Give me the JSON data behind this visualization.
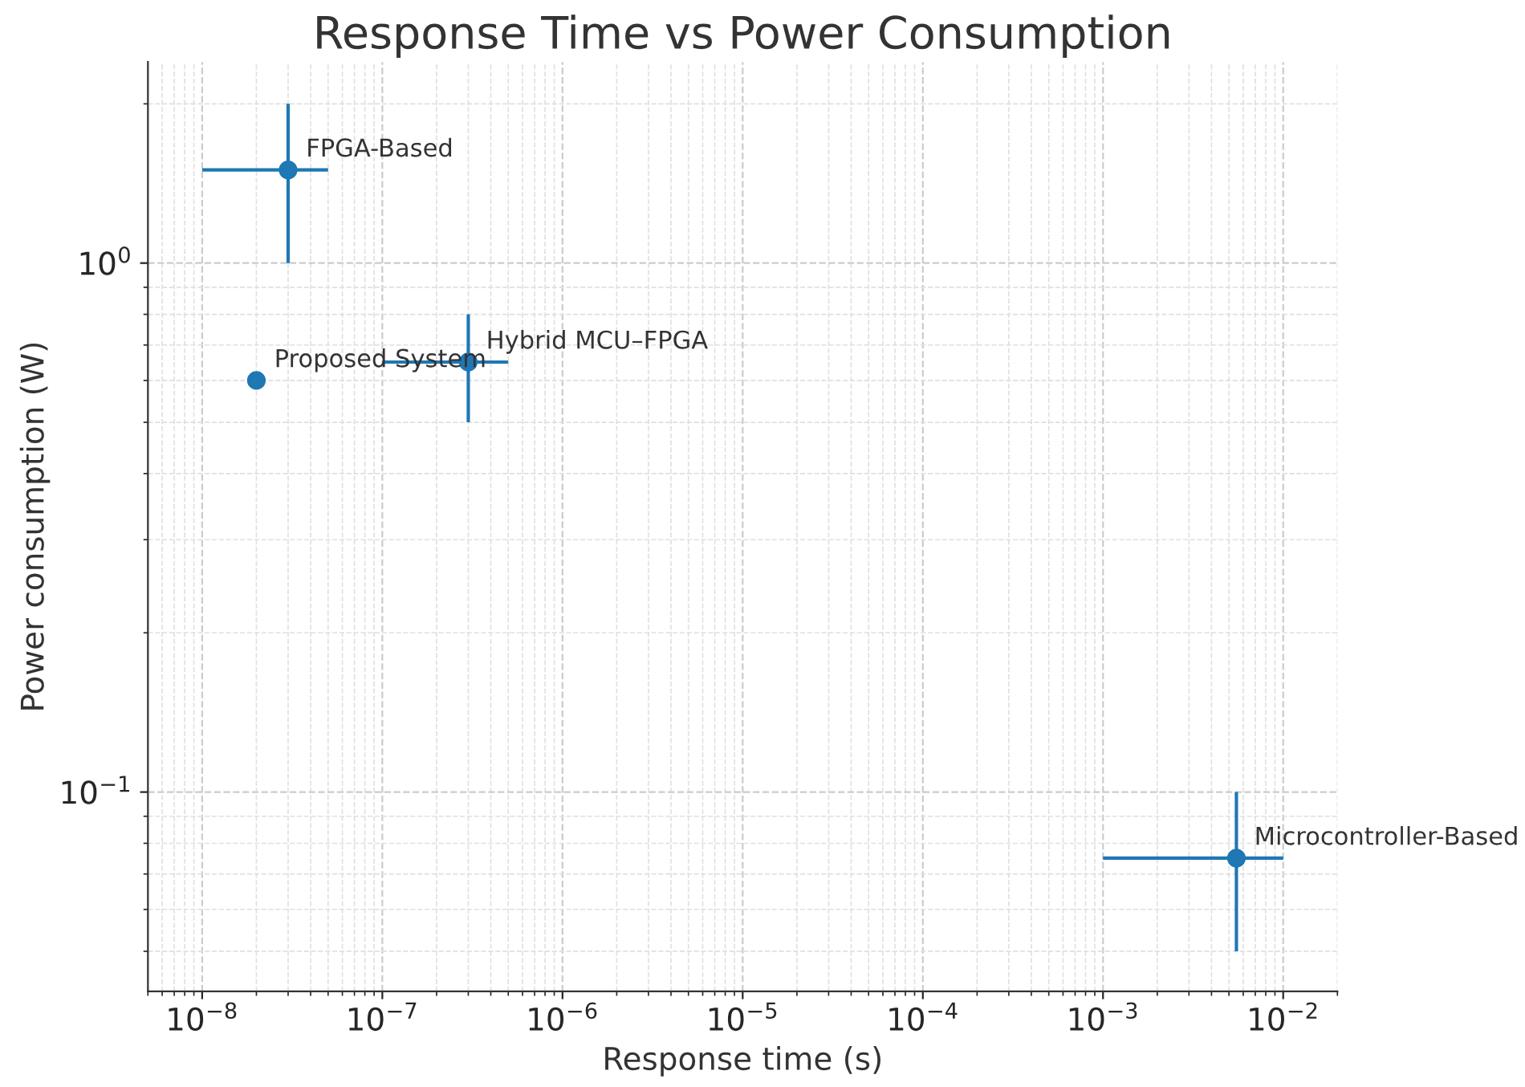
{
  "chart_data": {
    "type": "scatter",
    "title": "Response Time vs Power Consumption",
    "xlabel": "Response time (s)",
    "ylabel": "Power consumption (W)",
    "log": "xy",
    "grid": true,
    "marker": "circle",
    "xlim": [
      5e-09,
      0.02
    ],
    "ylim": [
      0.042,
      2.4
    ],
    "xticks": [
      {
        "value": 1e-08,
        "label": "10$^{−8}$"
      },
      {
        "value": 1e-07,
        "label": "10$^{−7}$"
      },
      {
        "value": 1e-06,
        "label": "10$^{−6}$"
      },
      {
        "value": 1e-05,
        "label": "10$^{−5}$"
      },
      {
        "value": 0.0001,
        "label": "10$^{−4}$"
      },
      {
        "value": 0.001,
        "label": "10$^{−3}$"
      },
      {
        "value": 0.01,
        "label": "10$^{−2}$"
      }
    ],
    "yticks": [
      {
        "value": 0.1,
        "label": "10$^{−1}$"
      },
      {
        "value": 1,
        "label": "10$^{0}$"
      }
    ],
    "series": [
      {
        "color": "#1f77b4",
        "x": [
          3e-08,
          2e-08,
          3e-07,
          0.0055
        ],
        "values": [
          1.5,
          0.6,
          0.65,
          0.075
        ],
        "errors": [
          [
            1.0,
            2.0
          ],
          null,
          [
            0.5,
            0.8
          ],
          [
            0.05,
            0.1
          ]
        ],
        "xerrors": [
          [
            1e-08,
            5e-08
          ],
          null,
          [
            1e-07,
            5e-07
          ],
          [
            0.001,
            0.01
          ]
        ]
      }
    ],
    "annotations": [
      {
        "text": "FPGA-Based",
        "x": 3e-08,
        "y": 1.5
      },
      {
        "text": "Proposed System",
        "x": 2e-08,
        "y": 0.6
      },
      {
        "text": "Hybrid MCU–FPGA",
        "x": 3e-07,
        "y": 0.65
      },
      {
        "text": "Microcontroller-Based",
        "x": 0.0055,
        "y": 0.075
      }
    ]
  }
}
